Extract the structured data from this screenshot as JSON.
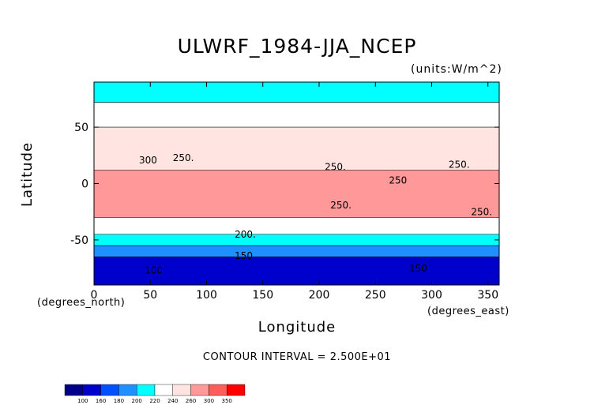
{
  "chart_data": {
    "type": "heatmap",
    "title": "ULWRF_1984-JJA_NCEP",
    "units": "(units:W/m^2)",
    "xlabel": "Longitude",
    "ylabel": "Latitude",
    "x_unit_label": "(degrees_east)",
    "y_unit_label": "(degrees_north)",
    "xlim": [
      0,
      360
    ],
    "ylim": [
      -90,
      90
    ],
    "x_ticks": [
      0,
      50,
      100,
      150,
      200,
      250,
      300,
      350
    ],
    "y_ticks": [
      -50,
      0,
      50
    ],
    "contour_interval_text": "CONTOUR INTERVAL = 2.500E+01",
    "contour_labels": [
      {
        "text": "300",
        "lon": 40,
        "lat": 18
      },
      {
        "text": "250.",
        "lon": 70,
        "lat": 20
      },
      {
        "text": "250.",
        "lon": 205,
        "lat": 12
      },
      {
        "text": "250",
        "lon": 262,
        "lat": 0
      },
      {
        "text": "250.",
        "lon": 315,
        "lat": 14
      },
      {
        "text": "250.",
        "lon": 210,
        "lat": -22
      },
      {
        "text": "250.",
        "lon": 335,
        "lat": -28
      },
      {
        "text": "200.",
        "lon": 125,
        "lat": -48
      },
      {
        "text": "150",
        "lon": 125,
        "lat": -67
      },
      {
        "text": "150",
        "lon": 280,
        "lat": -78
      },
      {
        "text": "100",
        "lon": 45,
        "lat": -80
      }
    ],
    "colorbar": {
      "levels": [
        "100",
        "160",
        "180",
        "200",
        "220",
        "240",
        "260",
        "300",
        "350"
      ],
      "colors": [
        "#00008b",
        "#0000cd",
        "#0050ff",
        "#1e90ff",
        "#00ffff",
        "#ffffff",
        "#ffe4e1",
        "#ff9999",
        "#ff5c5c",
        "#ff0000"
      ]
    },
    "zones": [
      {
        "lat_top": 90,
        "lat_bottom": 72,
        "value": 215
      },
      {
        "lat_top": 72,
        "lat_bottom": 50,
        "value": 235
      },
      {
        "lat_top": 50,
        "lat_bottom": 12,
        "value": 250
      },
      {
        "lat_top": 12,
        "lat_bottom": -30,
        "value": 262
      },
      {
        "lat_top": -30,
        "lat_bottom": -45,
        "value": 235
      },
      {
        "lat_top": -45,
        "lat_bottom": -55,
        "value": 210
      },
      {
        "lat_top": -55,
        "lat_bottom": -65,
        "value": 195
      },
      {
        "lat_top": -65,
        "lat_bottom": -90,
        "value": 150
      }
    ]
  }
}
